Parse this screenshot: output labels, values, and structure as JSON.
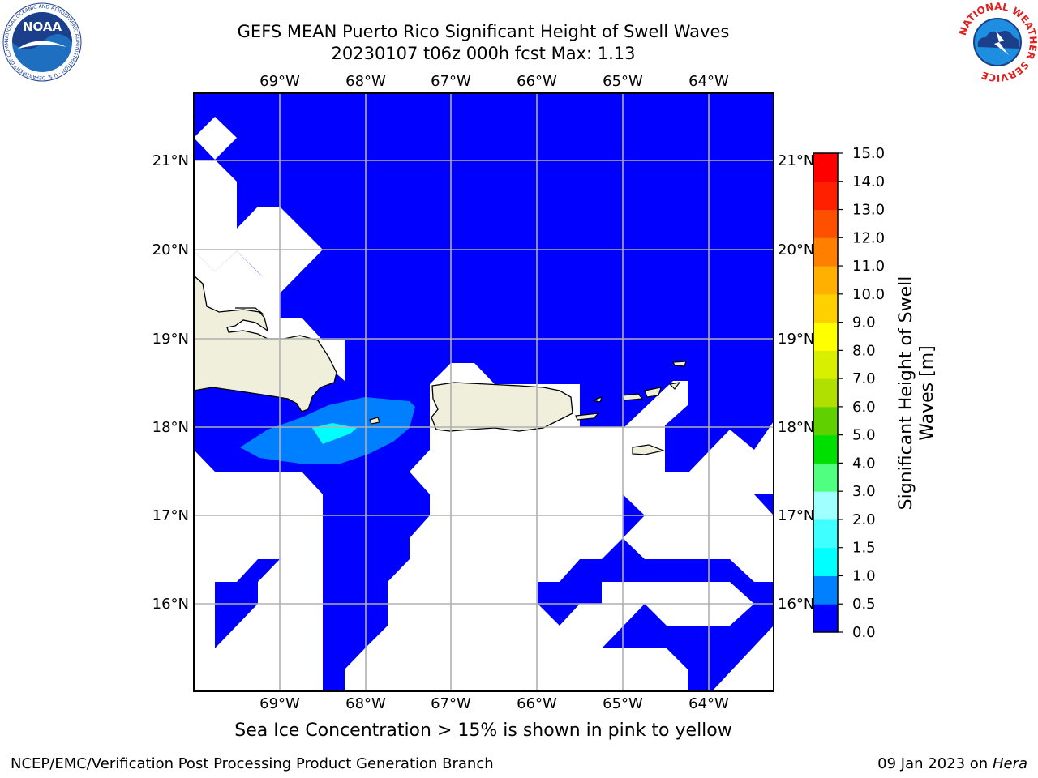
{
  "header": {
    "title_line1": "GEFS MEAN Puerto Rico Significant Height of Swell Waves",
    "title_line2": "20230107 t06z 000h fcst   Max: 1.13"
  },
  "logos": {
    "left": "NOAA",
    "left_ring_text": "NATIONAL OCEANIC AND ATMOSPHERIC ADMINISTRATION · U.S. DEPARTMENT OF COMMERCE",
    "right_ring_text": "NATIONAL WEATHER SERVICE"
  },
  "map": {
    "lon_labels": [
      "69°W",
      "68°W",
      "67°W",
      "66°W",
      "65°W",
      "64°W"
    ],
    "lat_labels": [
      "21°N",
      "20°N",
      "19°N",
      "18°N",
      "17°N",
      "16°N"
    ],
    "colors": {
      "water_0_05": "#0000ff",
      "swell_05_10": "#0080ff",
      "swell_10_15": "#00ffff",
      "land": "#efefdc"
    }
  },
  "colorbar": {
    "label": "Significant Height of Swell Waves [m]",
    "label_line1": "Significant Height of Swell",
    "label_line2": "Waves [m]",
    "ticks": [
      "0.0",
      "0.5",
      "1.0",
      "1.5",
      "2.0",
      "3.0",
      "4.0",
      "5.0",
      "6.0",
      "7.0",
      "8.0",
      "9.0",
      "10.0",
      "11.0",
      "12.0",
      "13.0",
      "14.0",
      "15.0"
    ],
    "colors": [
      "#0000ff",
      "#0080ff",
      "#00ffff",
      "#40ffff",
      "#a0ffff",
      "#50ff80",
      "#00e000",
      "#60d000",
      "#b0e000",
      "#d8f000",
      "#ffff00",
      "#ffd000",
      "#ffb000",
      "#ff8000",
      "#ff5000",
      "#ff2000",
      "#ff0000"
    ]
  },
  "footer": {
    "note": "Sea Ice Concentration > 15% is shown in pink to yellow",
    "left": "NCEP/EMC/Verification Post Processing Product Generation Branch",
    "right_prefix": "09 Jan 2023 on",
    "right_host": "Hera"
  }
}
